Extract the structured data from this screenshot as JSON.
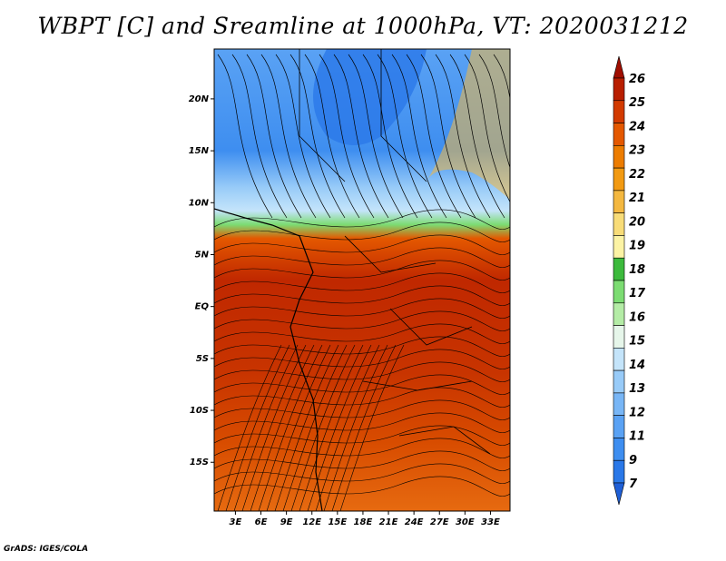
{
  "title": "WBPT [C] and Sreamline at 1000hPa, VT: 2020031212",
  "footer": "GrADS: IGES/COLA",
  "chart_data": {
    "type": "heatmap",
    "title": "WBPT [C] and Sreamline at 1000hPa, VT: 2020031212",
    "variable": "WBPT [C]",
    "overlay": "streamlines",
    "x_ticks": [
      "3E",
      "6E",
      "9E",
      "12E",
      "15E",
      "18E",
      "21E",
      "24E",
      "27E",
      "30E",
      "33E"
    ],
    "x_values": [
      3,
      6,
      9,
      12,
      15,
      18,
      21,
      24,
      27,
      30,
      33
    ],
    "y_ticks": [
      "20N",
      "15N",
      "10N",
      "5N",
      "EQ",
      "5S",
      "10S",
      "15S"
    ],
    "y_values": [
      20,
      15,
      10,
      5,
      0,
      -5,
      -10,
      -15
    ],
    "xlim": [
      0.5,
      35.3
    ],
    "ylim": [
      -19.7,
      24.8
    ],
    "colorbar": {
      "levels": [
        "7",
        "9",
        "11",
        "12",
        "13",
        "14",
        "15",
        "16",
        "17",
        "18",
        "19",
        "20",
        "21",
        "22",
        "23",
        "24",
        "25",
        "26"
      ],
      "colors": [
        "#1f5fd6",
        "#2a78e8",
        "#3e8ef0",
        "#5aa2f4",
        "#78b6f6",
        "#98cbf8",
        "#c4e4fa",
        "#e6f6ea",
        "#b4eca6",
        "#7cdc72",
        "#3cba3c",
        "#fcf3a4",
        "#f8dc78",
        "#f4b840",
        "#f29a12",
        "#ec7c00",
        "#e45800",
        "#d23a00",
        "#b81e00",
        "#a00e00"
      ]
    }
  }
}
